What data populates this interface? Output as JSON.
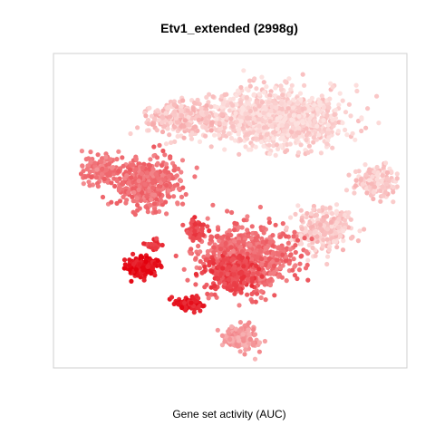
{
  "chart_data": {
    "type": "scatter",
    "title": "Etv1_extended (2998g)",
    "subtitle": "",
    "xlabel": "Gene set activity (AUC)",
    "ylabel": "",
    "axes_visible": false,
    "grid": false,
    "legend": "none",
    "xlim": [
      0,
      100
    ],
    "ylim": [
      0,
      100
    ],
    "color_scale": {
      "low": "#fde2e0",
      "high": "#e3000d",
      "metric": "AUC"
    },
    "clusters": [
      {
        "id": "top-right",
        "center": [
          63,
          80
        ],
        "spread": [
          17,
          8
        ],
        "n": 1200,
        "level": 0.06
      },
      {
        "id": "top-left-band",
        "center": [
          36,
          80
        ],
        "spread": [
          9,
          5
        ],
        "n": 260,
        "level": 0.14
      },
      {
        "id": "upper-left-arm",
        "center": [
          13,
          63
        ],
        "spread": [
          5,
          4
        ],
        "n": 140,
        "level": 0.45
      },
      {
        "id": "left-middle",
        "center": [
          26,
          59
        ],
        "spread": [
          9,
          7
        ],
        "n": 480,
        "level": 0.5
      },
      {
        "id": "right-arm",
        "center": [
          92,
          59
        ],
        "spread": [
          5,
          5
        ],
        "n": 170,
        "level": 0.1
      },
      {
        "id": "lower-right-band",
        "center": [
          77,
          44
        ],
        "spread": [
          7,
          6
        ],
        "n": 260,
        "level": 0.12
      },
      {
        "id": "bottom-center",
        "center": [
          55,
          35
        ],
        "spread": [
          12,
          9
        ],
        "n": 700,
        "level": 0.52
      },
      {
        "id": "bottom-core",
        "center": [
          50,
          30
        ],
        "spread": [
          6,
          5
        ],
        "n": 260,
        "level": 0.7
      },
      {
        "id": "left-hot",
        "center": [
          25,
          32
        ],
        "spread": [
          3.5,
          3
        ],
        "n": 200,
        "level": 0.92
      },
      {
        "id": "mid-upper-spot",
        "center": [
          40,
          44
        ],
        "spread": [
          3,
          3
        ],
        "n": 70,
        "level": 0.7
      },
      {
        "id": "small-spot",
        "center": [
          28,
          39
        ],
        "spread": [
          2,
          1.5
        ],
        "n": 30,
        "level": 0.75
      },
      {
        "id": "lower-spot",
        "center": [
          38,
          20
        ],
        "spread": [
          3.5,
          1.8
        ],
        "n": 90,
        "level": 0.88
      },
      {
        "id": "bottom-tail",
        "center": [
          53,
          9
        ],
        "spread": [
          5,
          4
        ],
        "n": 160,
        "level": 0.3
      }
    ]
  }
}
